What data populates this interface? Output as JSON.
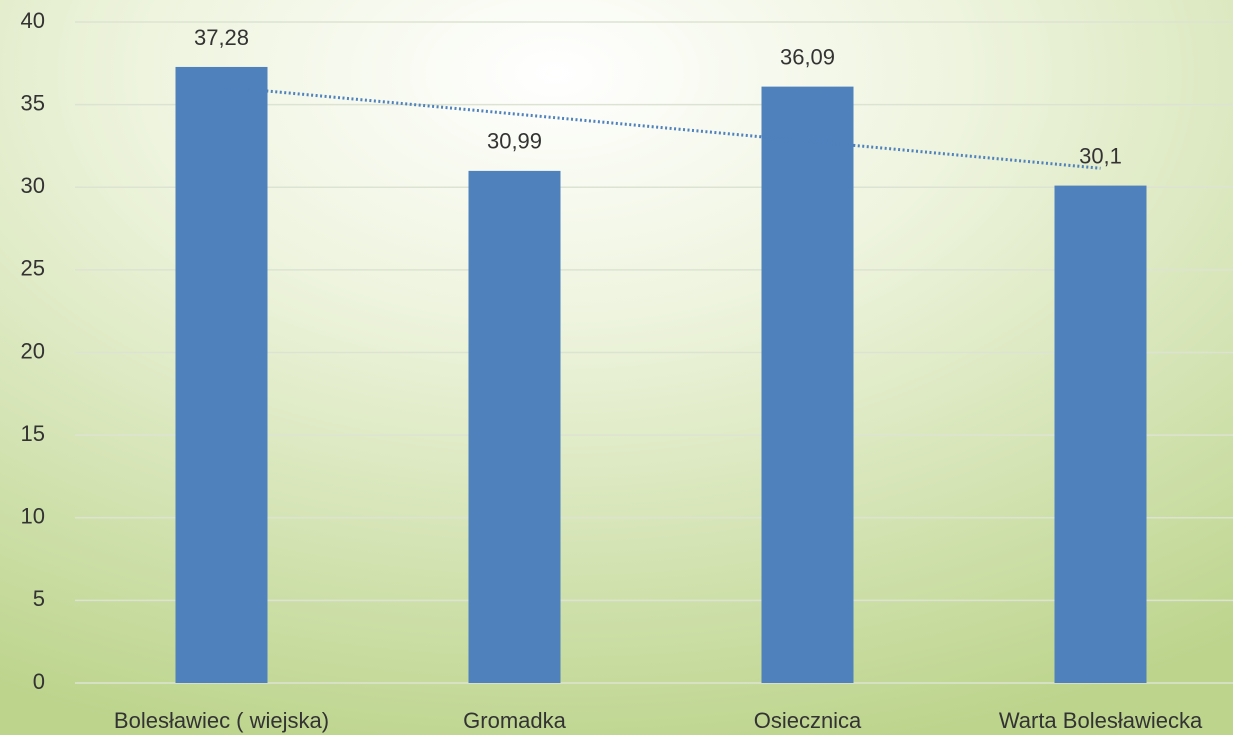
{
  "chart_data": {
    "type": "bar",
    "categories": [
      "Bolesławiec ( wiejska)",
      "Gromadka",
      "Osiecznica",
      "Warta Bolesławiecka"
    ],
    "values": [
      37.28,
      30.99,
      36.09,
      30.1
    ],
    "value_labels": [
      "37,28",
      "30,99",
      "36,09",
      "30,1"
    ],
    "color": "#4f81bd",
    "ylim": [
      0,
      40
    ],
    "yticks": [
      0,
      5,
      10,
      15,
      20,
      25,
      30,
      35,
      40
    ],
    "grid": true,
    "trendline": true
  }
}
